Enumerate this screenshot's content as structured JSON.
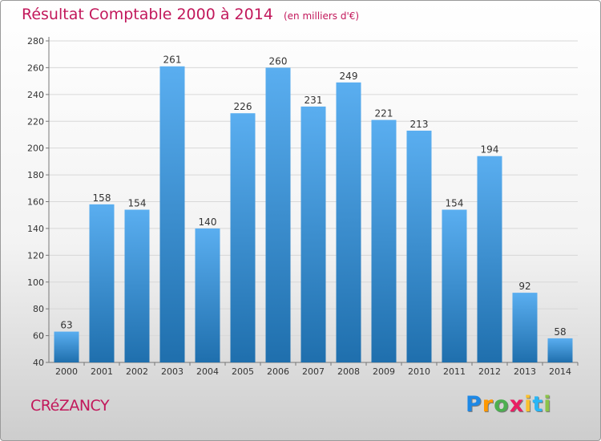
{
  "chart_data": {
    "type": "bar",
    "title": "Résultat Comptable 2000 à 2014",
    "unit_note": "(en milliers d'€)",
    "categories": [
      "2000",
      "2001",
      "2002",
      "2003",
      "2004",
      "2005",
      "2006",
      "2007",
      "2008",
      "2009",
      "2010",
      "2011",
      "2012",
      "2013",
      "2014"
    ],
    "values": [
      63,
      158,
      154,
      261,
      140,
      226,
      260,
      231,
      249,
      221,
      213,
      154,
      194,
      92,
      58
    ],
    "ylim": [
      40,
      280
    ],
    "yticks": [
      40,
      60,
      80,
      100,
      120,
      140,
      160,
      180,
      200,
      220,
      240,
      260,
      280
    ],
    "grid": true,
    "colors": {
      "bar_light": "#5aaef0",
      "bar_dark": "#1f6fad",
      "title": "#c2185b"
    }
  },
  "location": "CRéZANCY",
  "brand": {
    "letters": [
      "P",
      "r",
      "o",
      "x",
      "i",
      "t",
      "i"
    ],
    "colors": [
      "#1e88e5",
      "#ff9800",
      "#4caf50",
      "#e91e63",
      "#fbc02d",
      "#29b6f6",
      "#8bc34a"
    ]
  }
}
